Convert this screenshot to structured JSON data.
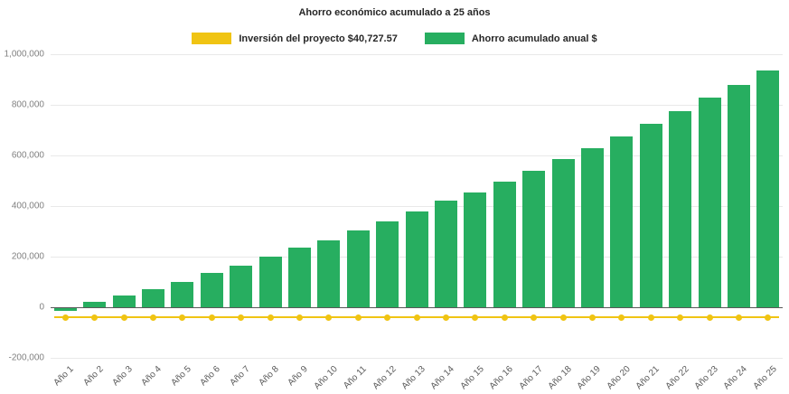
{
  "chart_data": {
    "type": "bar",
    "title": "Ahorro económico acumulado a 25 años",
    "categories": [
      "Año 1",
      "Año 2",
      "Año 3",
      "Año 4",
      "Año 5",
      "Año 6",
      "Año 7",
      "Año 8",
      "Año 9",
      "Año 10",
      "Año 11",
      "Año 12",
      "Año 13",
      "Año 14",
      "Año 15",
      "Año 16",
      "Año 17",
      "Año 18",
      "Año 19",
      "Año 20",
      "Año 21",
      "Año 22",
      "Año 23",
      "Año 24",
      "Año 25"
    ],
    "series": [
      {
        "name": "Inversión del proyecto $40,727.57",
        "type": "line",
        "color": "#F0C413",
        "investment_value": 40727.57,
        "values": [
          -40727.57,
          -40727.57,
          -40727.57,
          -40727.57,
          -40727.57,
          -40727.57,
          -40727.57,
          -40727.57,
          -40727.57,
          -40727.57,
          -40727.57,
          -40727.57,
          -40727.57,
          -40727.57,
          -40727.57,
          -40727.57,
          -40727.57,
          -40727.57,
          -40727.57,
          -40727.57,
          -40727.57,
          -40727.57,
          -40727.57,
          -40727.57,
          -40727.57
        ]
      },
      {
        "name": "Ahorro acumulado anual $",
        "type": "bar",
        "color": "#27AE60",
        "values": [
          -15000,
          20000,
          45000,
          70000,
          100000,
          135000,
          165000,
          200000,
          235000,
          265000,
          305000,
          340000,
          380000,
          420000,
          455000,
          495000,
          540000,
          585000,
          630000,
          675000,
          725000,
          775000,
          830000,
          880000,
          935000
        ]
      }
    ],
    "xlabel": "",
    "ylabel": "",
    "ylim": [
      -200000,
      1000000
    ],
    "yticks": [
      -200000,
      0,
      200000,
      400000,
      600000,
      800000,
      1000000
    ],
    "ytick_labels": [
      "-200,000",
      "0",
      "200,000",
      "400,000",
      "600,000",
      "800,000",
      "1,000,000"
    ],
    "grid": true,
    "legend_position": "top",
    "colors": {
      "background": "#FFFFFF",
      "gridline": "#E9E9E9",
      "zero_axis": "#595959",
      "bar_green": "#27AE60",
      "line_yellow": "#F0C413",
      "tick_text": "#808080",
      "title_text": "#262626"
    }
  }
}
